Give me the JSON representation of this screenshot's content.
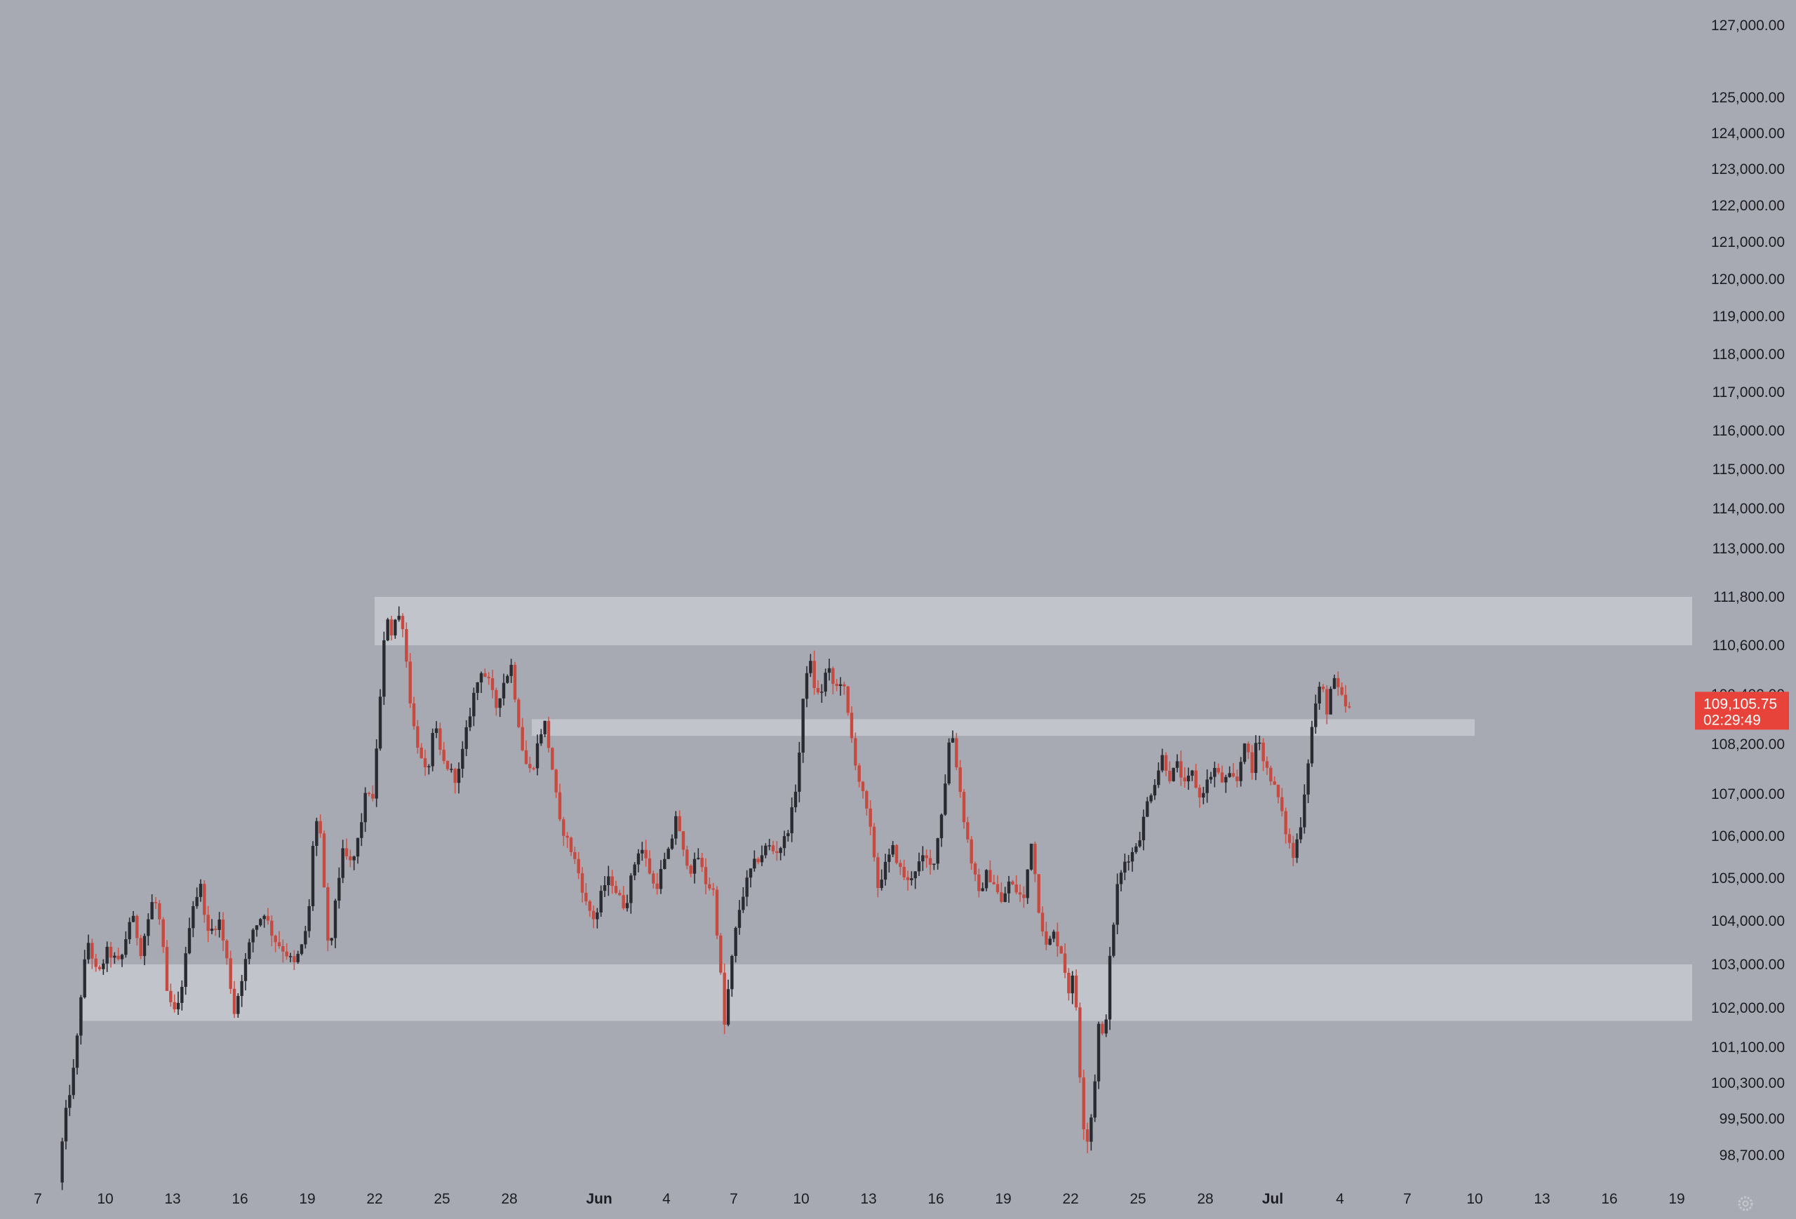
{
  "colors": {
    "background": "#a8aab3",
    "zone": "#c2c4cb",
    "bull": "#2a2b31",
    "bear": "#c64a40",
    "wick_bear": "#d05348",
    "price_badge": "#e8433a",
    "text": "#1c1d22"
  },
  "settings_icon": "gear-icon",
  "current_price": {
    "price_label": "109,105.75",
    "countdown": "02:29:49",
    "value": 109105.75
  },
  "chart_data": {
    "type": "candlestick",
    "timeframe_hint": "intraday candles",
    "x_range": [
      "2025-05-07",
      "2025-07-20"
    ],
    "y_range": [
      98000,
      127300
    ],
    "y_scale": "log",
    "grid": false,
    "legend": "none",
    "y_ticks": [
      {
        "value": 127000,
        "label": "127,000.00"
      },
      {
        "value": 125000,
        "label": "125,000.00"
      },
      {
        "value": 124000,
        "label": "124,000.00"
      },
      {
        "value": 123000,
        "label": "123,000.00"
      },
      {
        "value": 122000,
        "label": "122,000.00"
      },
      {
        "value": 121000,
        "label": "121,000.00"
      },
      {
        "value": 120000,
        "label": "120,000.00"
      },
      {
        "value": 119000,
        "label": "119,000.00"
      },
      {
        "value": 118000,
        "label": "118,000.00"
      },
      {
        "value": 117000,
        "label": "117,000.00"
      },
      {
        "value": 116000,
        "label": "116,000.00"
      },
      {
        "value": 115000,
        "label": "115,000.00"
      },
      {
        "value": 114000,
        "label": "114,000.00"
      },
      {
        "value": 113000,
        "label": "113,000.00"
      },
      {
        "value": 111800,
        "label": "111,800.00"
      },
      {
        "value": 110600,
        "label": "110,600.00"
      },
      {
        "value": 109400,
        "label": "109,400.00"
      },
      {
        "value": 108200,
        "label": "108,200.00"
      },
      {
        "value": 107000,
        "label": "107,000.00"
      },
      {
        "value": 106000,
        "label": "106,000.00"
      },
      {
        "value": 105000,
        "label": "105,000.00"
      },
      {
        "value": 104000,
        "label": "104,000.00"
      },
      {
        "value": 103000,
        "label": "103,000.00"
      },
      {
        "value": 102000,
        "label": "102,000.00"
      },
      {
        "value": 101100,
        "label": "101,100.00"
      },
      {
        "value": 100300,
        "label": "100,300.00"
      },
      {
        "value": 99500,
        "label": "99,500.00"
      },
      {
        "value": 98700,
        "label": "98,700.00"
      }
    ],
    "x_ticks": [
      {
        "date": "2025-05-07",
        "label": "7"
      },
      {
        "date": "2025-05-10",
        "label": "10"
      },
      {
        "date": "2025-05-13",
        "label": "13"
      },
      {
        "date": "2025-05-16",
        "label": "16"
      },
      {
        "date": "2025-05-19",
        "label": "19"
      },
      {
        "date": "2025-05-22",
        "label": "22"
      },
      {
        "date": "2025-05-25",
        "label": "25"
      },
      {
        "date": "2025-05-28",
        "label": "28"
      },
      {
        "date": "2025-06-01",
        "label": "Jun",
        "bold": true
      },
      {
        "date": "2025-06-04",
        "label": "4"
      },
      {
        "date": "2025-06-07",
        "label": "7"
      },
      {
        "date": "2025-06-10",
        "label": "10"
      },
      {
        "date": "2025-06-13",
        "label": "13"
      },
      {
        "date": "2025-06-16",
        "label": "16"
      },
      {
        "date": "2025-06-19",
        "label": "19"
      },
      {
        "date": "2025-06-22",
        "label": "22"
      },
      {
        "date": "2025-06-25",
        "label": "25"
      },
      {
        "date": "2025-06-28",
        "label": "28"
      },
      {
        "date": "2025-07-01",
        "label": "Jul",
        "bold": true
      },
      {
        "date": "2025-07-04",
        "label": "4"
      },
      {
        "date": "2025-07-07",
        "label": "7"
      },
      {
        "date": "2025-07-10",
        "label": "10"
      },
      {
        "date": "2025-07-13",
        "label": "13"
      },
      {
        "date": "2025-07-16",
        "label": "16"
      },
      {
        "date": "2025-07-19",
        "label": "19"
      }
    ],
    "zones": [
      {
        "from_date": "2025-05-22",
        "to_date": "2025-07-20",
        "low": 110600,
        "high": 111800
      },
      {
        "from_date": "2025-05-29",
        "to_date": "2025-07-10",
        "low": 108400,
        "high": 108800
      },
      {
        "from_date": "2025-05-09",
        "to_date": "2025-07-20",
        "low": 101700,
        "high": 103000
      }
    ],
    "price_path": [
      [
        "2025-05-08T00:00",
        98100
      ],
      [
        "2025-05-08T06:00",
        99400
      ],
      [
        "2025-05-08T18:00",
        100800
      ],
      [
        "2025-05-09T02:00",
        102800
      ],
      [
        "2025-05-09T08:00",
        103500
      ],
      [
        "2025-05-09T18:00",
        102700
      ],
      [
        "2025-05-10T04:00",
        103300
      ],
      [
        "2025-05-10T18:00",
        103000
      ],
      [
        "2025-05-11T06:00",
        104200
      ],
      [
        "2025-05-11T16:00",
        103300
      ],
      [
        "2025-05-12T06:00",
        104600
      ],
      [
        "2025-05-12T14:00",
        103800
      ],
      [
        "2025-05-12T20:00",
        102300
      ],
      [
        "2025-05-13T06:00",
        101800
      ],
      [
        "2025-05-13T14:00",
        102800
      ],
      [
        "2025-05-13T22:00",
        104300
      ],
      [
        "2025-05-14T08:00",
        104800
      ],
      [
        "2025-05-14T16:00",
        103700
      ],
      [
        "2025-05-15T04:00",
        104000
      ],
      [
        "2025-05-15T12:00",
        103100
      ],
      [
        "2025-05-15T20:00",
        101900
      ],
      [
        "2025-05-16T06:00",
        102900
      ],
      [
        "2025-05-16T16:00",
        103800
      ],
      [
        "2025-05-17T04:00",
        104200
      ],
      [
        "2025-05-17T14:00",
        103600
      ],
      [
        "2025-05-18T02:00",
        103300
      ],
      [
        "2025-05-18T12:00",
        103000
      ],
      [
        "2025-05-18T22:00",
        103500
      ],
      [
        "2025-05-19T04:00",
        104300
      ],
      [
        "2025-05-19T08:00",
        105800
      ],
      [
        "2025-05-19T14:00",
        106600
      ],
      [
        "2025-05-19T20:00",
        104700
      ],
      [
        "2025-05-20T02:00",
        103000
      ],
      [
        "2025-05-20T08:00",
        104500
      ],
      [
        "2025-05-20T16:00",
        105600
      ],
      [
        "2025-05-21T02:00",
        105300
      ],
      [
        "2025-05-21T10:00",
        106100
      ],
      [
        "2025-05-21T18:00",
        107200
      ],
      [
        "2025-05-22T00:00",
        106800
      ],
      [
        "2025-05-22T06:00",
        108800
      ],
      [
        "2025-05-22T10:00",
        109800
      ],
      [
        "2025-05-22T14:00",
        111500
      ],
      [
        "2025-05-22T20:00",
        110900
      ],
      [
        "2025-05-23T02:00",
        111400
      ],
      [
        "2025-05-23T08:00",
        111100
      ],
      [
        "2025-05-23T12:00",
        110200
      ],
      [
        "2025-05-23T18:00",
        108800
      ],
      [
        "2025-05-24T04:00",
        107800
      ],
      [
        "2025-05-24T10:00",
        107400
      ],
      [
        "2025-05-24T18:00",
        108700
      ],
      [
        "2025-05-25T02:00",
        107800
      ],
      [
        "2025-05-25T10:00",
        107600
      ],
      [
        "2025-05-25T18:00",
        107300
      ],
      [
        "2025-05-26T04:00",
        108500
      ],
      [
        "2025-05-26T12:00",
        109400
      ],
      [
        "2025-05-26T20:00",
        110000
      ],
      [
        "2025-05-27T04:00",
        109700
      ],
      [
        "2025-05-27T12:00",
        109100
      ],
      [
        "2025-05-27T20:00",
        109700
      ],
      [
        "2025-05-28T04:00",
        110100
      ],
      [
        "2025-05-28T10:00",
        109000
      ],
      [
        "2025-05-28T18:00",
        107800
      ],
      [
        "2025-05-29T02:00",
        107500
      ],
      [
        "2025-05-29T10:00",
        108400
      ],
      [
        "2025-05-29T16:00",
        108700
      ],
      [
        "2025-05-30T00:00",
        107600
      ],
      [
        "2025-05-30T08:00",
        106300
      ],
      [
        "2025-05-30T16:00",
        105900
      ],
      [
        "2025-05-31T02:00",
        105300
      ],
      [
        "2025-05-31T12:00",
        104400
      ],
      [
        "2025-05-31T22:00",
        104000
      ],
      [
        "2025-06-01T06:00",
        104800
      ],
      [
        "2025-06-01T14:00",
        105000
      ],
      [
        "2025-06-01T22:00",
        104600
      ],
      [
        "2025-06-02T06:00",
        104300
      ],
      [
        "2025-06-02T14:00",
        105200
      ],
      [
        "2025-06-02T22:00",
        105800
      ],
      [
        "2025-06-03T06:00",
        105300
      ],
      [
        "2025-06-03T14:00",
        104700
      ],
      [
        "2025-06-03T22:00",
        105300
      ],
      [
        "2025-06-04T06:00",
        105700
      ],
      [
        "2025-06-04T12:00",
        106500
      ],
      [
        "2025-06-04T20:00",
        105600
      ],
      [
        "2025-06-05T04:00",
        105200
      ],
      [
        "2025-06-05T12:00",
        105500
      ],
      [
        "2025-06-05T20:00",
        104900
      ],
      [
        "2025-06-06T04:00",
        104700
      ],
      [
        "2025-06-06T10:00",
        103300
      ],
      [
        "2025-06-06T16:00",
        101600
      ],
      [
        "2025-06-06T22:00",
        102800
      ],
      [
        "2025-06-07T06:00",
        104100
      ],
      [
        "2025-06-07T14:00",
        104800
      ],
      [
        "2025-06-07T22:00",
        105300
      ],
      [
        "2025-06-08T06:00",
        105500
      ],
      [
        "2025-06-08T14:00",
        105800
      ],
      [
        "2025-06-08T22:00",
        105600
      ],
      [
        "2025-06-09T06:00",
        105800
      ],
      [
        "2025-06-09T14:00",
        106300
      ],
      [
        "2025-06-09T22:00",
        107400
      ],
      [
        "2025-06-10T04:00",
        109200
      ],
      [
        "2025-06-10T10:00",
        110400
      ],
      [
        "2025-06-10T16:00",
        109600
      ],
      [
        "2025-06-10T22:00",
        109300
      ],
      [
        "2025-06-11T06:00",
        110100
      ],
      [
        "2025-06-11T14:00",
        109500
      ],
      [
        "2025-06-11T22:00",
        109800
      ],
      [
        "2025-06-12T06:00",
        108600
      ],
      [
        "2025-06-12T14:00",
        107500
      ],
      [
        "2025-06-12T22:00",
        106800
      ],
      [
        "2025-06-13T06:00",
        105900
      ],
      [
        "2025-06-13T12:00",
        104800
      ],
      [
        "2025-06-13T20:00",
        105300
      ],
      [
        "2025-06-14T04:00",
        105700
      ],
      [
        "2025-06-14T12:00",
        105200
      ],
      [
        "2025-06-14T20:00",
        104900
      ],
      [
        "2025-06-15T06:00",
        105300
      ],
      [
        "2025-06-15T14:00",
        105500
      ],
      [
        "2025-06-15T22:00",
        105200
      ],
      [
        "2025-06-16T06:00",
        106200
      ],
      [
        "2025-06-16T12:00",
        107300
      ],
      [
        "2025-06-16T18:00",
        108700
      ],
      [
        "2025-06-17T00:00",
        107700
      ],
      [
        "2025-06-17T08:00",
        106400
      ],
      [
        "2025-06-17T16:00",
        105400
      ],
      [
        "2025-06-18T00:00",
        104600
      ],
      [
        "2025-06-18T08:00",
        105100
      ],
      [
        "2025-06-18T16:00",
        104900
      ],
      [
        "2025-06-19T00:00",
        104400
      ],
      [
        "2025-06-19T08:00",
        104900
      ],
      [
        "2025-06-19T16:00",
        104700
      ],
      [
        "2025-06-20T00:00",
        104500
      ],
      [
        "2025-06-20T08:00",
        105900
      ],
      [
        "2025-06-20T16:00",
        104300
      ],
      [
        "2025-06-21T00:00",
        103400
      ],
      [
        "2025-06-21T08:00",
        103700
      ],
      [
        "2025-06-21T16:00",
        103300
      ],
      [
        "2025-06-22T00:00",
        102400
      ],
      [
        "2025-06-22T06:00",
        102800
      ],
      [
        "2025-06-22T12:00",
        100500
      ],
      [
        "2025-06-22T18:00",
        98800
      ],
      [
        "2025-06-23T02:00",
        99800
      ],
      [
        "2025-06-23T08:00",
        101600
      ],
      [
        "2025-06-23T14:00",
        101200
      ],
      [
        "2025-06-23T20:00",
        103100
      ],
      [
        "2025-06-24T04:00",
        104800
      ],
      [
        "2025-06-24T12:00",
        105400
      ],
      [
        "2025-06-24T20:00",
        105600
      ],
      [
        "2025-06-25T04:00",
        106000
      ],
      [
        "2025-06-25T12:00",
        106800
      ],
      [
        "2025-06-25T20:00",
        107300
      ],
      [
        "2025-06-26T04:00",
        107900
      ],
      [
        "2025-06-26T12:00",
        107400
      ],
      [
        "2025-06-26T20:00",
        107700
      ],
      [
        "2025-06-27T04:00",
        107200
      ],
      [
        "2025-06-27T12:00",
        107500
      ],
      [
        "2025-06-27T20:00",
        106900
      ],
      [
        "2025-06-28T04:00",
        107300
      ],
      [
        "2025-06-28T12:00",
        107600
      ],
      [
        "2025-06-28T20:00",
        107300
      ],
      [
        "2025-06-29T04:00",
        107400
      ],
      [
        "2025-06-29T12:00",
        107300
      ],
      [
        "2025-06-29T20:00",
        108300
      ],
      [
        "2025-06-30T04:00",
        107500
      ],
      [
        "2025-06-30T10:00",
        108600
      ],
      [
        "2025-06-30T16:00",
        107800
      ],
      [
        "2025-07-01T00:00",
        107400
      ],
      [
        "2025-07-01T08:00",
        106900
      ],
      [
        "2025-07-01T16:00",
        106100
      ],
      [
        "2025-07-02T00:00",
        105500
      ],
      [
        "2025-07-02T08:00",
        106300
      ],
      [
        "2025-07-02T16:00",
        107800
      ],
      [
        "2025-07-02T22:00",
        109000
      ],
      [
        "2025-07-03T06:00",
        109700
      ],
      [
        "2025-07-03T12:00",
        109000
      ],
      [
        "2025-07-03T18:00",
        109800
      ],
      [
        "2025-07-04T00:00",
        109500
      ],
      [
        "2025-07-04T04:00",
        109300
      ],
      [
        "2025-07-04T08:00",
        109100
      ]
    ]
  }
}
